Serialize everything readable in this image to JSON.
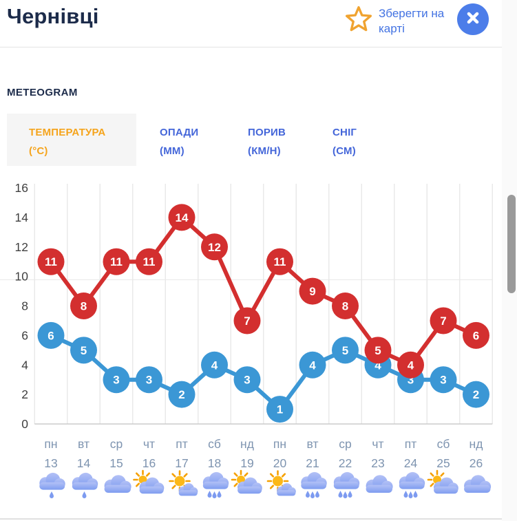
{
  "header": {
    "title": "Чернівці",
    "save_button_label": "Зберегти на карті"
  },
  "section": {
    "title": "METEOGRAM"
  },
  "tabs": [
    {
      "label": "ТЕМПЕРАТУРА",
      "unit": "(°C)",
      "active": true
    },
    {
      "label": "ОПАДИ",
      "unit": "(ММ)",
      "active": false
    },
    {
      "label": "ПОРИВ",
      "unit": "(КМ/Н)",
      "active": false
    },
    {
      "label": "СНІГ",
      "unit": "(СМ)",
      "active": false
    }
  ],
  "chart_data": {
    "type": "line",
    "categories_day": [
      "пн",
      "вт",
      "ср",
      "чт",
      "пт",
      "сб",
      "нд",
      "пн",
      "вт",
      "ср",
      "чт",
      "пт",
      "сб",
      "нд"
    ],
    "categories_date": [
      "13",
      "14",
      "15",
      "16",
      "17",
      "18",
      "19",
      "20",
      "21",
      "22",
      "23",
      "24",
      "25",
      "26"
    ],
    "series": [
      {
        "name": "temperature-max",
        "color": "#d32f2f",
        "values": [
          11,
          8,
          11,
          11,
          14,
          12,
          7,
          11,
          9,
          8,
          5,
          4,
          7,
          6
        ]
      },
      {
        "name": "temperature-min",
        "color": "#3b97d5",
        "values": [
          6,
          5,
          3,
          3,
          2,
          4,
          3,
          1,
          4,
          5,
          4,
          3,
          3,
          2
        ]
      }
    ],
    "ylim": [
      0,
      16
    ],
    "yticks": [
      0,
      2,
      4,
      6,
      8,
      10,
      12,
      14,
      16
    ],
    "grid": "vertical-only",
    "legend": "none",
    "weather_icons": [
      "rain-1",
      "rain-1",
      "cloudy",
      "partly",
      "sunny",
      "rain-3",
      "partly",
      "sunny",
      "rain-3",
      "rain-3",
      "cloudy",
      "rain-3",
      "partly",
      "cloudy"
    ]
  },
  "colors": {
    "series_max": "#d32f2f",
    "series_min": "#3b97d5",
    "title_navy": "#1c2b4a",
    "tab_active_orange": "#f5a41c",
    "tab_blue": "#4466d9",
    "save_link_blue": "#4272e2",
    "star_orange": "#f0a330",
    "close_button_blue": "#4c7de9",
    "axis_text": "#3f3f3f",
    "date_text": "#7e94b0",
    "gridline": "#e9e9e9",
    "cloud_blue": "#8aa4f0",
    "sun_yellow": "#fcb817"
  }
}
